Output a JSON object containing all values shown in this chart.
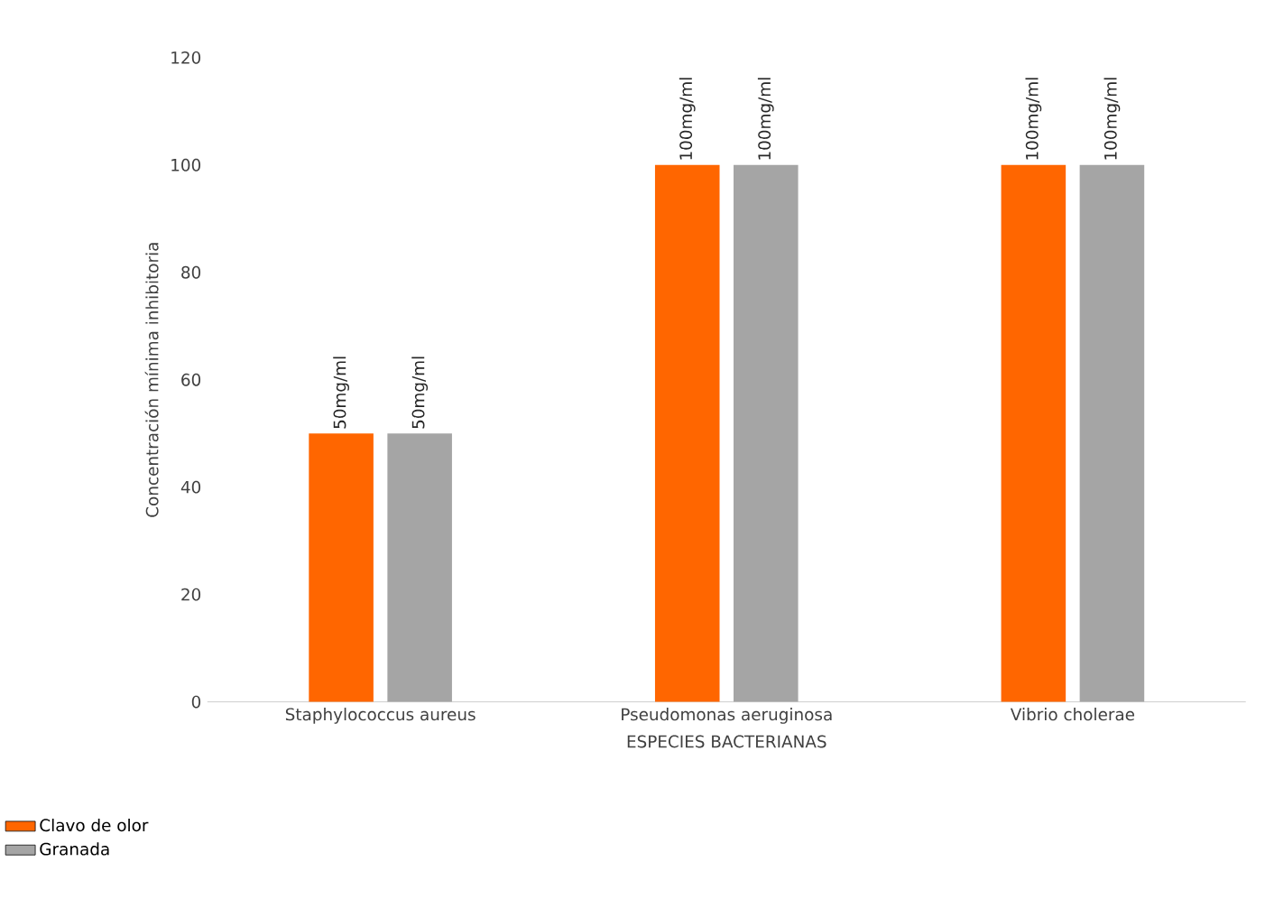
{
  "chart_data": {
    "type": "bar",
    "xlabel": "ESPECIES BACTERIANAS",
    "ylabel": "Concentración mínima inhibitoria",
    "categories": [
      "Staphylococcus aureus",
      "Pseudomonas aeruginosa",
      "Vibrio cholerae"
    ],
    "series": [
      {
        "name": "Clavo de olor",
        "color": "#ff6600",
        "values": [
          50,
          100,
          100
        ],
        "value_labels": [
          "50mg/ml",
          "100mg/ml",
          "100mg/ml"
        ]
      },
      {
        "name": "Granada",
        "color": "#a5a5a5",
        "values": [
          50,
          100,
          100
        ],
        "value_labels": [
          "50mg/ml",
          "100mg/ml",
          "100mg/ml"
        ]
      }
    ],
    "ylim": [
      0,
      120
    ],
    "yticks": [
      0,
      20,
      40,
      60,
      80,
      100,
      120
    ],
    "legend": "bottom left"
  }
}
